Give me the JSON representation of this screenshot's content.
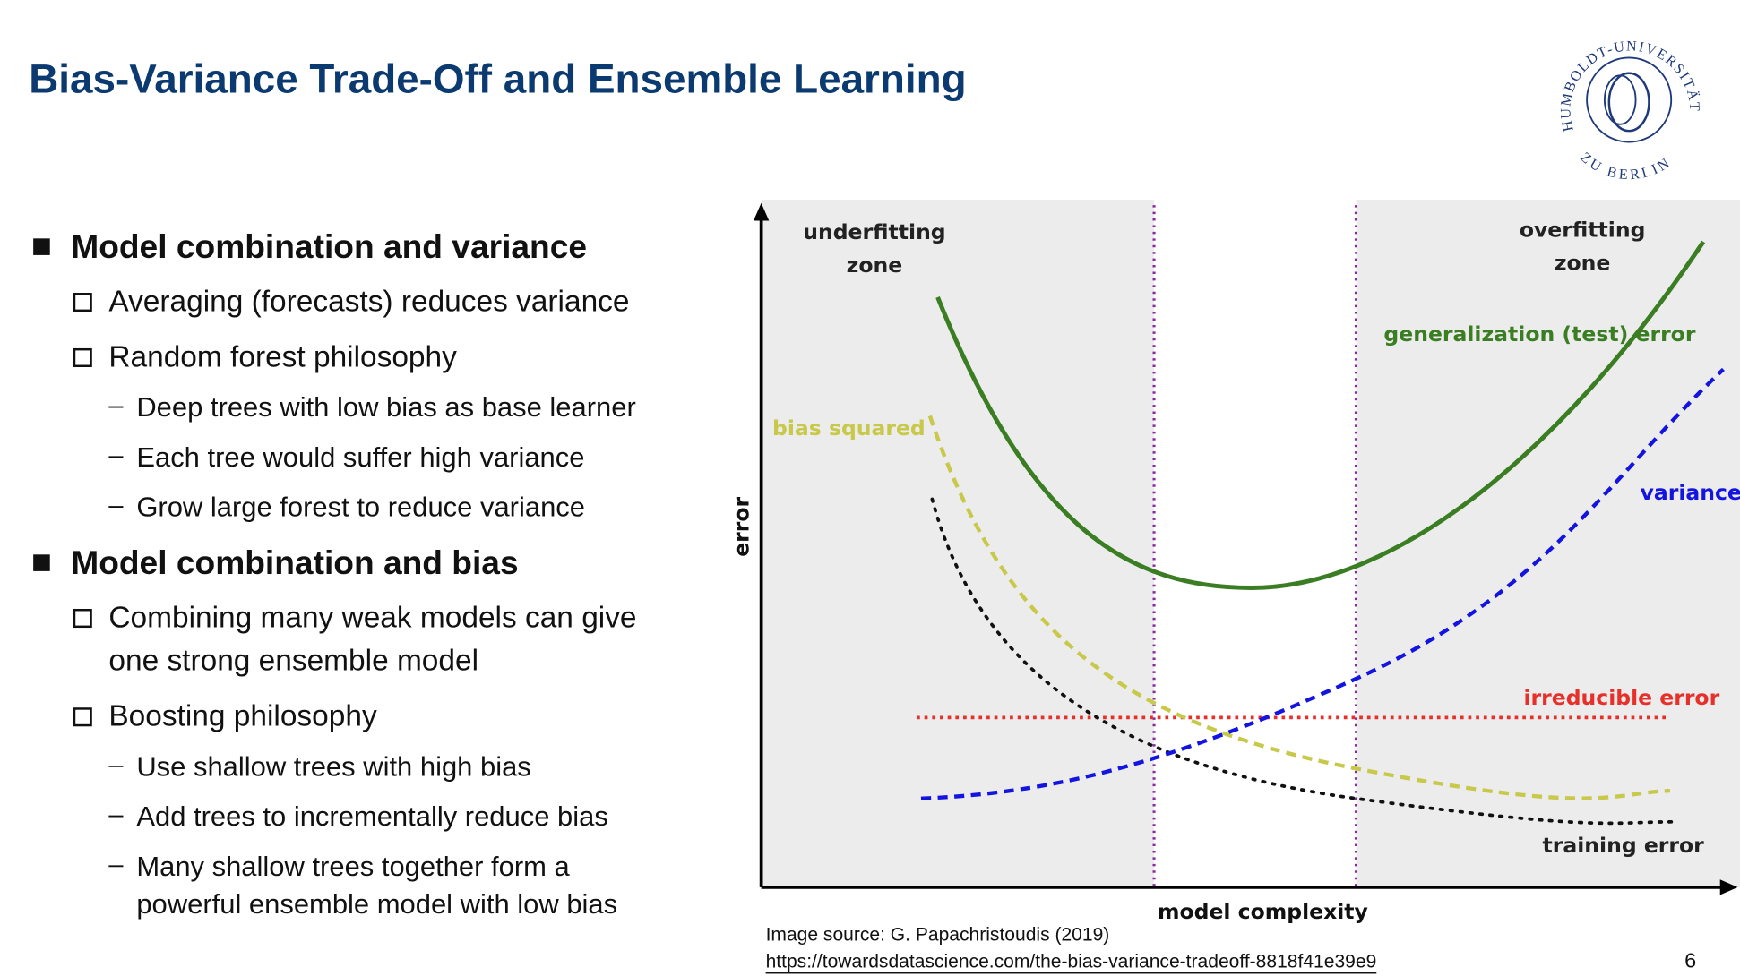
{
  "header": {
    "title": "Bias-Variance Trade-Off and Ensemble Learning",
    "logo": {
      "top": "HUMBOLDT-UNIVERSITÄT",
      "bottom": "ZU BERLIN"
    }
  },
  "bullets": [
    {
      "text": "Model combination and variance",
      "items": [
        {
          "text": "Averaging (forecasts) reduces variance"
        },
        {
          "text": "Random forest philosophy",
          "items": [
            {
              "text": "Deep trees with low bias as base learner"
            },
            {
              "text": "Each tree would suffer high variance"
            },
            {
              "text": "Grow large forest to reduce variance"
            }
          ]
        }
      ]
    },
    {
      "text": "Model combination and bias",
      "items": [
        {
          "text": [
            "Combining many weak models can give",
            "one strong ensemble model"
          ]
        },
        {
          "text": "Boosting philosophy",
          "items": [
            {
              "text": "Use shallow trees with high bias"
            },
            {
              "text": "Add trees to incrementally reduce bias"
            },
            {
              "text": [
                "Many shallow trees together form a",
                "powerful ensemble model with low bias"
              ]
            }
          ]
        }
      ]
    }
  ],
  "figure": {
    "underfitting": [
      "underfitting",
      "zone"
    ],
    "overfitting": [
      "overfitting",
      "zone"
    ],
    "generalization": "generalization (test) error",
    "bias": "bias squared",
    "variance": "variance",
    "irreducible": "irreducible error",
    "training": "training error",
    "x_axis": "model complexity",
    "y_axis": "error"
  },
  "source": {
    "text": "Image source: G. Papachristoudis (2019)",
    "url": "https://towardsdatascience.com/the-bias-variance-tradeoff-8818f41e39e9"
  },
  "page_number": "6"
}
